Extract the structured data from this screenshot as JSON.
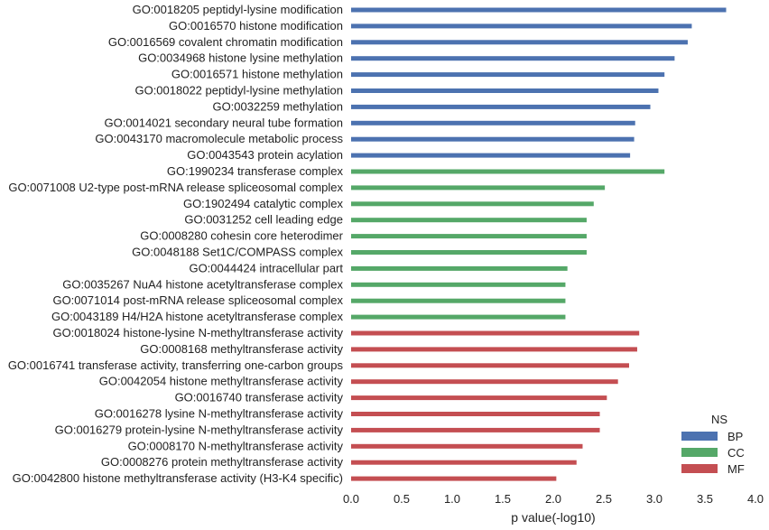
{
  "chart_data": {
    "type": "bar",
    "orientation": "horizontal",
    "xlabel": "p value(-log10)",
    "ylabel": "",
    "xlim": [
      0,
      4.0
    ],
    "xticks": [
      "0.0",
      "0.5",
      "1.0",
      "1.5",
      "2.0",
      "2.5",
      "3.0",
      "3.5",
      "4.0"
    ],
    "grid": false,
    "legend": {
      "title": "NS",
      "position": "bottom-right",
      "entries": [
        {
          "name": "BP",
          "color": "#4c72b0"
        },
        {
          "name": "CC",
          "color": "#55a868"
        },
        {
          "name": "MF",
          "color": "#c44e52"
        }
      ]
    },
    "bars": [
      {
        "label": "GO:0018205 peptidyl-lysine modification",
        "value": 3.71,
        "ns": "BP"
      },
      {
        "label": "GO:0016570 histone modification",
        "value": 3.37,
        "ns": "BP"
      },
      {
        "label": "GO:0016569 covalent chromatin modification",
        "value": 3.33,
        "ns": "BP"
      },
      {
        "label": "GO:0034968 histone lysine methylation",
        "value": 3.2,
        "ns": "BP"
      },
      {
        "label": "GO:0016571 histone methylation",
        "value": 3.1,
        "ns": "BP"
      },
      {
        "label": "GO:0018022 peptidyl-lysine methylation",
        "value": 3.04,
        "ns": "BP"
      },
      {
        "label": "GO:0032259 methylation",
        "value": 2.96,
        "ns": "BP"
      },
      {
        "label": "GO:0014021 secondary neural tube formation",
        "value": 2.81,
        "ns": "BP"
      },
      {
        "label": "GO:0043170 macromolecule metabolic process",
        "value": 2.8,
        "ns": "BP"
      },
      {
        "label": "GO:0043543 protein acylation",
        "value": 2.76,
        "ns": "BP"
      },
      {
        "label": "GO:1990234 transferase complex",
        "value": 3.1,
        "ns": "CC"
      },
      {
        "label": "GO:0071008 U2-type post-mRNA release spliceosomal complex",
        "value": 2.51,
        "ns": "CC"
      },
      {
        "label": "GO:1902494 catalytic complex",
        "value": 2.4,
        "ns": "CC"
      },
      {
        "label": "GO:0031252 cell leading edge",
        "value": 2.33,
        "ns": "CC"
      },
      {
        "label": "GO:0008280 cohesin core heterodimer",
        "value": 2.33,
        "ns": "CC"
      },
      {
        "label": "GO:0048188 Set1C/COMPASS complex",
        "value": 2.33,
        "ns": "CC"
      },
      {
        "label": "GO:0044424 intracellular part",
        "value": 2.14,
        "ns": "CC"
      },
      {
        "label": "GO:0035267 NuA4 histone acetyltransferase complex",
        "value": 2.12,
        "ns": "CC"
      },
      {
        "label": "GO:0071014 post-mRNA release spliceosomal complex",
        "value": 2.12,
        "ns": "CC"
      },
      {
        "label": "GO:0043189 H4/H2A histone acetyltransferase complex",
        "value": 2.12,
        "ns": "CC"
      },
      {
        "label": "GO:0018024 histone-lysine N-methyltransferase activity",
        "value": 2.85,
        "ns": "MF"
      },
      {
        "label": "GO:0008168 methyltransferase activity",
        "value": 2.83,
        "ns": "MF"
      },
      {
        "label": "GO:0016741 transferase activity, transferring one-carbon groups",
        "value": 2.75,
        "ns": "MF"
      },
      {
        "label": "GO:0042054 histone methyltransferase activity",
        "value": 2.64,
        "ns": "MF"
      },
      {
        "label": "GO:0016740 transferase activity",
        "value": 2.53,
        "ns": "MF"
      },
      {
        "label": "GO:0016278 lysine N-methyltransferase activity",
        "value": 2.46,
        "ns": "MF"
      },
      {
        "label": "GO:0016279 protein-lysine N-methyltransferase activity",
        "value": 2.46,
        "ns": "MF"
      },
      {
        "label": "GO:0008170 N-methyltransferase activity",
        "value": 2.29,
        "ns": "MF"
      },
      {
        "label": "GO:0008276 protein methyltransferase activity",
        "value": 2.23,
        "ns": "MF"
      },
      {
        "label": "GO:0042800 histone methyltransferase activity (H3-K4 specific)",
        "value": 2.03,
        "ns": "MF"
      }
    ]
  }
}
